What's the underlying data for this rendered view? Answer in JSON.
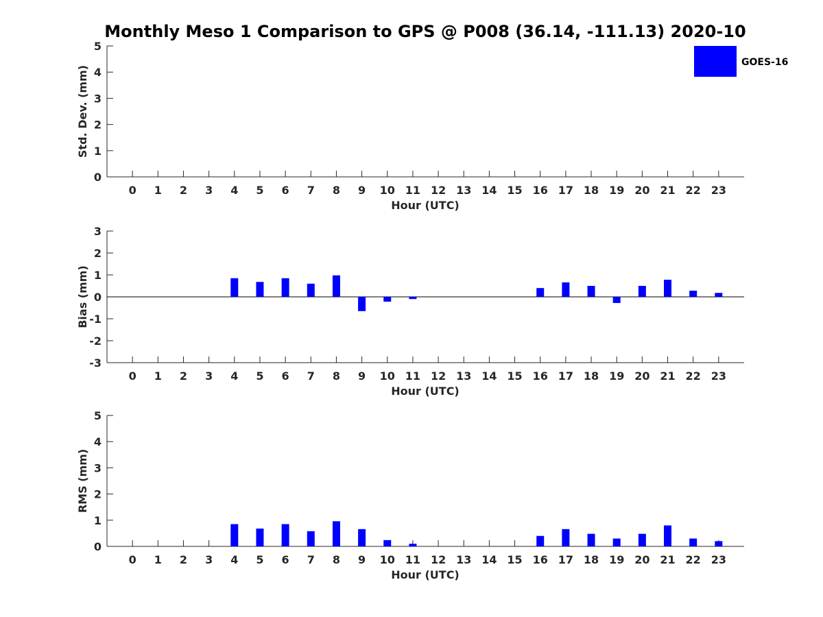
{
  "colors": {
    "bar": "#0000ff",
    "axis": "#262626",
    "background": "#ffffff"
  },
  "chart_data": {
    "title": "Monthly Meso 1 Comparison to GPS @ P008 (36.14, -111.13) 2020-10",
    "legend": {
      "label": "GOES-16",
      "color": "#0000ff",
      "placement": "top-right"
    },
    "panels": [
      {
        "type": "bar",
        "xlabel": "Hour (UTC)",
        "ylabel": "Std. Dev. (mm)",
        "ylim": [
          0,
          5
        ],
        "yticks": [
          "0",
          "1",
          "2",
          "3",
          "4",
          "5"
        ],
        "categories": [
          "0",
          "1",
          "2",
          "3",
          "4",
          "5",
          "6",
          "7",
          "8",
          "9",
          "10",
          "11",
          "12",
          "13",
          "14",
          "15",
          "16",
          "17",
          "18",
          "19",
          "20",
          "21",
          "22",
          "23"
        ],
        "series": [
          {
            "name": "GOES-16",
            "values": [
              null,
              null,
              null,
              null,
              0,
              0,
              0,
              0,
              0,
              0,
              0,
              0,
              null,
              null,
              null,
              null,
              0,
              0,
              0,
              0,
              0,
              0,
              0,
              0
            ]
          }
        ]
      },
      {
        "type": "bar",
        "xlabel": "Hour (UTC)",
        "ylabel": "Bias (mm)",
        "ylim": [
          -3,
          3
        ],
        "yticks": [
          "-3",
          "-2",
          "-1",
          "0",
          "1",
          "2",
          "3"
        ],
        "zero_line": true,
        "categories": [
          "0",
          "1",
          "2",
          "3",
          "4",
          "5",
          "6",
          "7",
          "8",
          "9",
          "10",
          "11",
          "12",
          "13",
          "14",
          "15",
          "16",
          "17",
          "18",
          "19",
          "20",
          "21",
          "22",
          "23"
        ],
        "series": [
          {
            "name": "GOES-16",
            "values": [
              null,
              null,
              null,
              null,
              0.85,
              0.68,
              0.85,
              0.6,
              0.98,
              -0.65,
              -0.22,
              -0.1,
              null,
              null,
              null,
              null,
              0.4,
              0.66,
              0.5,
              -0.28,
              0.5,
              0.78,
              0.28,
              0.18
            ]
          }
        ]
      },
      {
        "type": "bar",
        "xlabel": "Hour (UTC)",
        "ylabel": "RMS (mm)",
        "ylim": [
          0,
          5
        ],
        "yticks": [
          "0",
          "1",
          "2",
          "3",
          "4",
          "5"
        ],
        "categories": [
          "0",
          "1",
          "2",
          "3",
          "4",
          "5",
          "6",
          "7",
          "8",
          "9",
          "10",
          "11",
          "12",
          "13",
          "14",
          "15",
          "16",
          "17",
          "18",
          "19",
          "20",
          "21",
          "22",
          "23"
        ],
        "series": [
          {
            "name": "GOES-16",
            "values": [
              null,
              null,
              null,
              null,
              0.85,
              0.68,
              0.85,
              0.58,
              0.96,
              0.66,
              0.24,
              0.1,
              null,
              null,
              null,
              null,
              0.4,
              0.66,
              0.48,
              0.3,
              0.48,
              0.8,
              0.3,
              0.2
            ]
          }
        ]
      }
    ]
  }
}
